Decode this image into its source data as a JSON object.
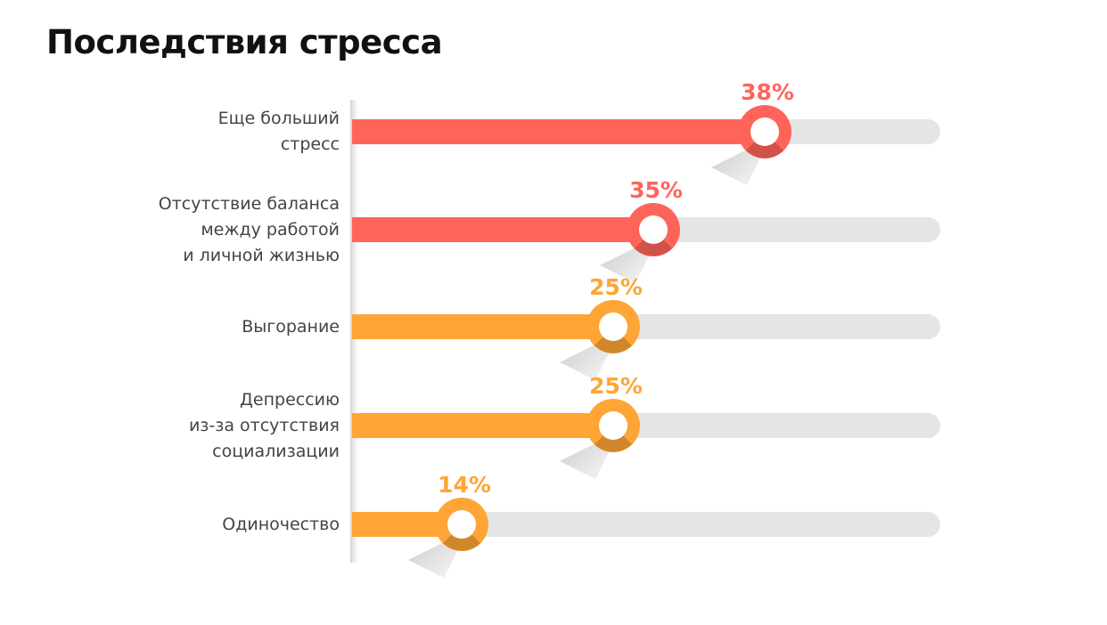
{
  "chart_data": {
    "type": "bar",
    "orientation": "horizontal",
    "title": "Последствия стресса",
    "categories": [
      "Еще больший\nстресс",
      "Отсутствие баланса\nмежду работой\nи личной жизнью",
      "Выгорание",
      "Депрессию\nиз-за отсутствия\nсоциализации",
      "Одиночество"
    ],
    "values": [
      38,
      35,
      25,
      25,
      14
    ],
    "data_labels": [
      "38%",
      "35%",
      "25%",
      "25%",
      "14%"
    ],
    "bar_colors": [
      "#FF645A",
      "#FF645A",
      "#FEA536",
      "#FEA536",
      "#FEA536"
    ],
    "track_color": "#E5E5E5",
    "grid": false,
    "legend": "none"
  }
}
